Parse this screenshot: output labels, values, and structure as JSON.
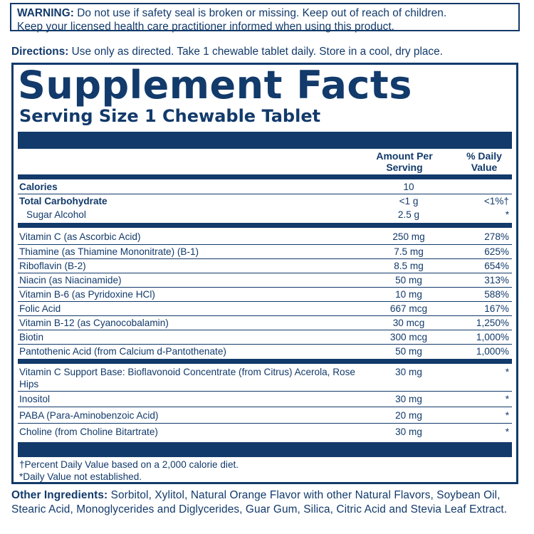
{
  "warning": {
    "label": "WARNING:",
    "text_line1": " Do not use if safety seal is broken or missing. Keep out of reach of children.",
    "text_line2": "Keep your licensed health care practitioner informed when using this product."
  },
  "directions": {
    "label": "Directions:",
    "text": " Use only as directed. Take 1 chewable tablet daily. Store in a cool, dry place."
  },
  "facts": {
    "title": "Supplement Facts",
    "serving_size": "Serving Size 1 Chewable Tablet",
    "col_amount_line1": "Amount Per",
    "col_amount_line2": "Serving",
    "col_dv_line1": "% Daily",
    "col_dv_line2": "Value",
    "rows": [
      {
        "label": "Calories",
        "amount": "10",
        "dv": ""
      },
      {
        "label": "Total Carbohydrate",
        "amount": "<1 g",
        "dv": "<1%†"
      },
      {
        "label": "Sugar Alcohol",
        "amount": "2.5 g",
        "dv": "*"
      },
      {
        "label": "Vitamin C (as Ascorbic Acid)",
        "amount": "250 mg",
        "dv": "278%"
      },
      {
        "label": "Thiamine (as Thiamine Mononitrate) (B-1)",
        "amount": "7.5 mg",
        "dv": "625%"
      },
      {
        "label": "Riboflavin (B-2)",
        "amount": "8.5 mg",
        "dv": "654%"
      },
      {
        "label": "Niacin (as Niacinamide)",
        "amount": "50 mg",
        "dv": "313%"
      },
      {
        "label": "Vitamin B-6 (as Pyridoxine HCl)",
        "amount": "10 mg",
        "dv": "588%"
      },
      {
        "label": "Folic Acid",
        "amount": "667 mcg",
        "dv": "167%"
      },
      {
        "label": "Vitamin B-12 (as Cyanocobalamin)",
        "amount": "30 mcg",
        "dv": "1,250%"
      },
      {
        "label": "Biotin",
        "amount": "300 mcg",
        "dv": "1,000%"
      },
      {
        "label": "Pantothenic Acid (from Calcium d-Pantothenate)",
        "amount": "50 mg",
        "dv": "1,000%"
      },
      {
        "label": "Vitamin C Support Base: Bioflavonoid Concentrate (from Citrus) Acerola, Rose Hips",
        "amount": "30 mg",
        "dv": "*"
      },
      {
        "label": "Inositol",
        "amount": "30 mg",
        "dv": "*"
      },
      {
        "label": "PABA (Para-Aminobenzoic Acid)",
        "amount": "20 mg",
        "dv": "*"
      },
      {
        "label": "Choline (from Choline Bitartrate)",
        "amount": "30 mg",
        "dv": "*"
      }
    ],
    "footnote1": "†Percent Daily Value based on a 2,000 calorie diet.",
    "footnote2": "*Daily Value not established."
  },
  "other_ingredients": {
    "label": "Other Ingredients:",
    "text": " Sorbitol, Xylitol, Natural Orange Flavor with other Natural Flavors, Soybean Oil, Stearic Acid, Monoglycerides and Diglycerides, Guar Gum, Silica, Citric Acid and Stevia Leaf Extract."
  },
  "colors": {
    "ink": "#123a6b",
    "background": "#ffffff"
  }
}
